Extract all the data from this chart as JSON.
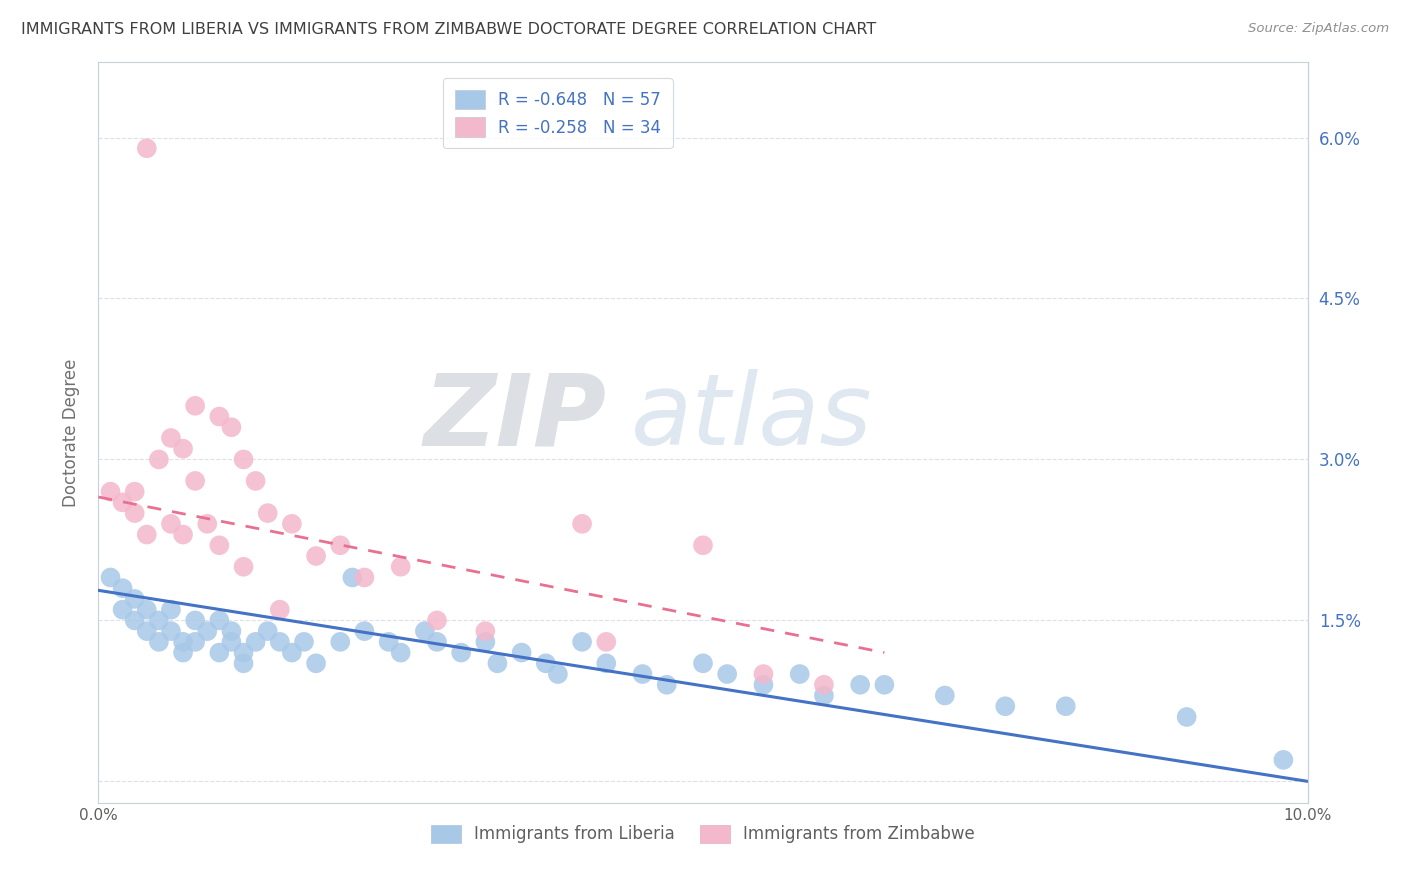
{
  "title": "IMMIGRANTS FROM LIBERIA VS IMMIGRANTS FROM ZIMBABWE DOCTORATE DEGREE CORRELATION CHART",
  "source": "Source: ZipAtlas.com",
  "ylabel": "Doctorate Degree",
  "xlim": [
    0.0,
    0.1
  ],
  "ylim": [
    -0.002,
    0.067
  ],
  "yticks": [
    0.0,
    0.015,
    0.03,
    0.045,
    0.06
  ],
  "ytick_labels": [
    "",
    "1.5%",
    "3.0%",
    "4.5%",
    "6.0%"
  ],
  "xticks": [
    0.0,
    0.02,
    0.04,
    0.06,
    0.08,
    0.1
  ],
  "xtick_labels": [
    "0.0%",
    "",
    "",
    "",
    "",
    "10.0%"
  ],
  "legend_entries": [
    {
      "label": "R = -0.648   N = 57",
      "color": "#a8c8e8"
    },
    {
      "label": "R = -0.258   N = 34",
      "color": "#f4b8cc"
    }
  ],
  "watermark_zip": "ZIP",
  "watermark_atlas": "atlas",
  "liberia_color": "#a8c8e8",
  "liberia_line_color": "#4472c4",
  "zimbabwe_color": "#f4b8cc",
  "zimbabwe_line_color": "#e87090",
  "title_color": "#404040",
  "source_color": "#909090",
  "axis_color": "#c8d0d8",
  "right_tick_color": "#4472c4",
  "grid_color": "#dde0e8",
  "liberia_x": [
    0.001,
    0.002,
    0.002,
    0.003,
    0.003,
    0.004,
    0.004,
    0.005,
    0.005,
    0.006,
    0.006,
    0.007,
    0.007,
    0.008,
    0.008,
    0.009,
    0.01,
    0.01,
    0.011,
    0.011,
    0.012,
    0.012,
    0.013,
    0.014,
    0.015,
    0.016,
    0.017,
    0.018,
    0.02,
    0.021,
    0.022,
    0.024,
    0.025,
    0.027,
    0.028,
    0.03,
    0.032,
    0.033,
    0.035,
    0.037,
    0.038,
    0.04,
    0.042,
    0.045,
    0.047,
    0.05,
    0.052,
    0.055,
    0.058,
    0.06,
    0.063,
    0.065,
    0.07,
    0.075,
    0.08,
    0.09,
    0.098
  ],
  "liberia_y": [
    0.019,
    0.018,
    0.016,
    0.017,
    0.015,
    0.016,
    0.014,
    0.015,
    0.013,
    0.014,
    0.016,
    0.013,
    0.012,
    0.015,
    0.013,
    0.014,
    0.015,
    0.012,
    0.014,
    0.013,
    0.012,
    0.011,
    0.013,
    0.014,
    0.013,
    0.012,
    0.013,
    0.011,
    0.013,
    0.019,
    0.014,
    0.013,
    0.012,
    0.014,
    0.013,
    0.012,
    0.013,
    0.011,
    0.012,
    0.011,
    0.01,
    0.013,
    0.011,
    0.01,
    0.009,
    0.011,
    0.01,
    0.009,
    0.01,
    0.008,
    0.009,
    0.009,
    0.008,
    0.007,
    0.007,
    0.006,
    0.002
  ],
  "zimbabwe_x": [
    0.001,
    0.002,
    0.003,
    0.003,
    0.004,
    0.004,
    0.005,
    0.006,
    0.006,
    0.007,
    0.007,
    0.008,
    0.008,
    0.009,
    0.01,
    0.01,
    0.011,
    0.012,
    0.012,
    0.013,
    0.014,
    0.015,
    0.016,
    0.018,
    0.02,
    0.022,
    0.025,
    0.028,
    0.032,
    0.04,
    0.042,
    0.05,
    0.055,
    0.06
  ],
  "zimbabwe_y": [
    0.027,
    0.026,
    0.027,
    0.025,
    0.059,
    0.023,
    0.03,
    0.032,
    0.024,
    0.031,
    0.023,
    0.028,
    0.035,
    0.024,
    0.034,
    0.022,
    0.033,
    0.03,
    0.02,
    0.028,
    0.025,
    0.016,
    0.024,
    0.021,
    0.022,
    0.019,
    0.02,
    0.015,
    0.014,
    0.024,
    0.013,
    0.022,
    0.01,
    0.009
  ],
  "liberia_trend_x": [
    0.0,
    0.1
  ],
  "liberia_trend_y": [
    0.0178,
    0.0
  ],
  "zimbabwe_trend_x": [
    0.0,
    0.065
  ],
  "zimbabwe_trend_y": [
    0.0265,
    0.012
  ]
}
